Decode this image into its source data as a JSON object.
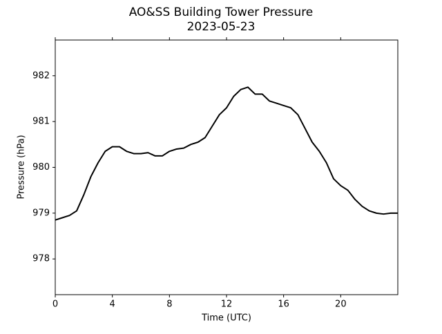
{
  "chart_data": {
    "type": "line",
    "title": "AO&SS Building Tower Pressure",
    "subtitle": "2023-05-23",
    "x_label": "Time (UTC)",
    "y_label": "Pressure (hPa)",
    "x": [
      0,
      0.5,
      1,
      1.5,
      2,
      2.5,
      3,
      3.5,
      4,
      4.5,
      5,
      5.5,
      6,
      6.5,
      7,
      7.5,
      8,
      8.5,
      9,
      9.5,
      10,
      10.5,
      11,
      11.5,
      12,
      12.5,
      13,
      13.5,
      14,
      14.5,
      15,
      15.5,
      16,
      16.5,
      17,
      17.5,
      18,
      18.5,
      19,
      19.5,
      20,
      20.5,
      21,
      21.5,
      22,
      22.5,
      23,
      23.5,
      24
    ],
    "series": [
      {
        "name": "Pressure",
        "color": "#000000",
        "values": [
          978.85,
          978.9,
          978.95,
          979.05,
          979.4,
          979.8,
          980.1,
          980.35,
          980.45,
          980.45,
          980.35,
          980.3,
          980.3,
          980.32,
          980.25,
          980.25,
          980.35,
          980.4,
          980.42,
          980.5,
          980.55,
          980.65,
          980.9,
          981.15,
          981.3,
          981.55,
          981.7,
          981.75,
          981.6,
          981.6,
          981.45,
          981.4,
          981.35,
          981.3,
          981.15,
          980.85,
          980.55,
          980.35,
          980.1,
          979.75,
          979.6,
          979.5,
          979.3,
          979.15,
          979.05,
          979.0,
          978.98,
          979.0,
          979.0
        ]
      }
    ],
    "xlim": [
      0,
      24
    ],
    "xticks": [
      0,
      4,
      8,
      12,
      16,
      20
    ],
    "ylim": [
      977.22,
      982.78
    ],
    "yticks": [
      978,
      979,
      980,
      981,
      982
    ]
  }
}
